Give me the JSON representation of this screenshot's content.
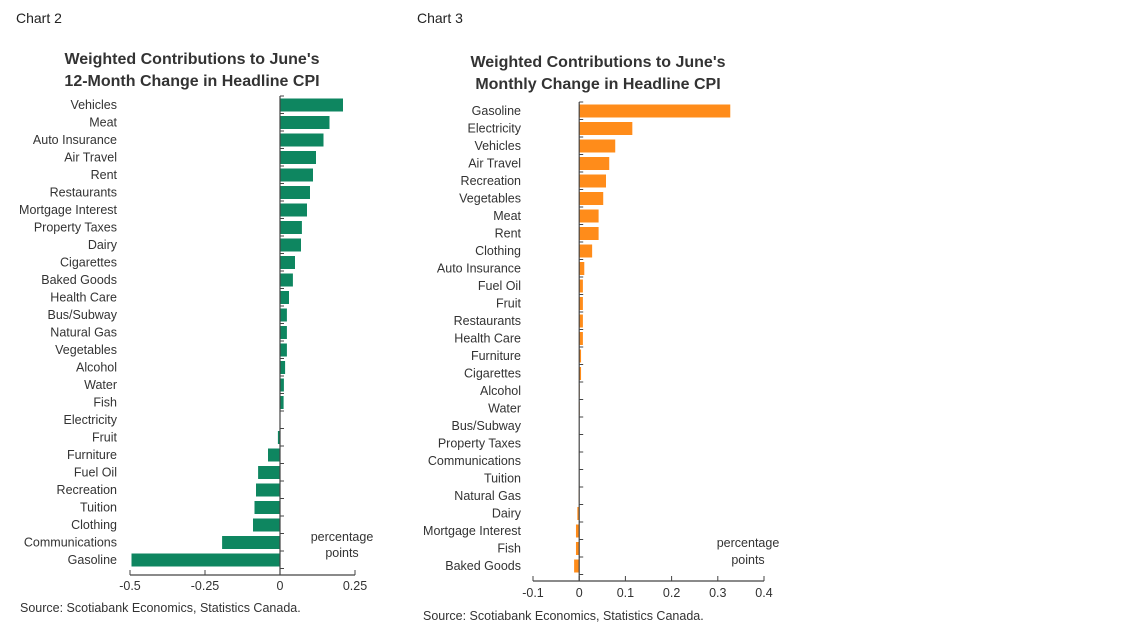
{
  "chart_data": [
    {
      "type": "bar",
      "orientation": "horizontal",
      "chart_label": "Chart 2",
      "title": [
        "Weighted Contributions  to June's",
        "12-Month Change in Headline CPI"
      ],
      "categories": [
        "Vehicles",
        "Meat",
        "Auto Insurance",
        "Air Travel",
        "Rent",
        "Restaurants",
        "Mortgage Interest",
        "Property Taxes",
        "Dairy",
        "Cigarettes",
        "Baked Goods",
        "Health Care",
        "Bus/Subway",
        "Natural Gas",
        "Vegetables",
        "Alcohol",
        "Water",
        "Fish",
        "Electricity",
        "Fruit",
        "Furniture",
        "Fuel Oil",
        "Recreation",
        "Tuition",
        "Clothing",
        "Communications",
        "Gasoline"
      ],
      "values": [
        0.21,
        0.165,
        0.145,
        0.12,
        0.11,
        0.1,
        0.09,
        0.073,
        0.07,
        0.05,
        0.043,
        0.03,
        0.023,
        0.023,
        0.023,
        0.017,
        0.013,
        0.012,
        0,
        -0.007,
        -0.04,
        -0.073,
        -0.08,
        -0.085,
        -0.09,
        -0.193,
        -0.495
      ],
      "xlim": [
        -0.5,
        0.25
      ],
      "xticks": [
        "-0.5",
        "-0.25",
        "0",
        "0.25"
      ],
      "xtick_values": [
        -0.5,
        -0.25,
        0,
        0.25
      ],
      "unit_label": [
        "percentage",
        "points"
      ],
      "color": "#0e8660",
      "grid": false,
      "source": "Source: Scotiabank Economics, Statistics Canada."
    },
    {
      "type": "bar",
      "orientation": "horizontal",
      "chart_label": "Chart 3",
      "title": [
        "Weighted Contributions  to June's",
        "Monthly Change in Headline CPI"
      ],
      "categories": [
        "Gasoline",
        "Electricity",
        "Vehicles",
        "Air Travel",
        "Recreation",
        "Vegetables",
        "Meat",
        "Rent",
        "Clothing",
        "Auto Insurance",
        "Fuel Oil",
        "Fruit",
        "Restaurants",
        "Health Care",
        "Furniture",
        "Cigarettes",
        "Alcohol",
        "Water",
        "Bus/Subway",
        "Property Taxes",
        "Communications",
        "Tuition",
        "Natural Gas",
        "Dairy",
        "Mortgage Interest",
        "Fish",
        "Baked Goods"
      ],
      "values": [
        0.327,
        0.115,
        0.078,
        0.065,
        0.058,
        0.052,
        0.042,
        0.042,
        0.028,
        0.011,
        0.008,
        0.008,
        0.008,
        0.008,
        0.004,
        0.004,
        0.001,
        0.001,
        0,
        0,
        0,
        0,
        -0.001,
        -0.004,
        -0.007,
        -0.007,
        -0.011
      ],
      "xlim": [
        -0.1,
        0.4
      ],
      "xticks": [
        "-0.1",
        "0",
        "0.1",
        "0.2",
        "0.3",
        "0.4"
      ],
      "xtick_values": [
        -0.1,
        0,
        0.1,
        0.2,
        0.3,
        0.4
      ],
      "unit_label": [
        "percentage",
        "points"
      ],
      "color": "#ff8c1a",
      "grid": false,
      "source": "Source: Scotiabank Economics, Statistics Canada."
    }
  ]
}
